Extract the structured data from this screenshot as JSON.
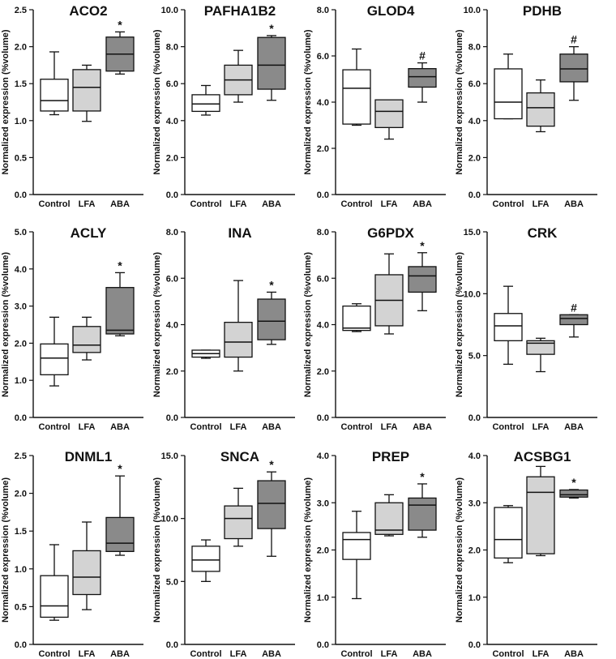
{
  "figure": {
    "ylabel": "Normalized expression (%volume)",
    "categories": [
      "Control",
      "LFA",
      "ABA"
    ],
    "colors": {
      "Control": "#ffffff",
      "LFA": "#d3d3d3",
      "ABA": "#8a8a8a",
      "stroke": "#111111"
    }
  },
  "chart_data": [
    {
      "type": "box",
      "title": "ACO2",
      "ylim": [
        0,
        2.5
      ],
      "yticks": [
        "0.0",
        "0.5",
        "1.0",
        "1.5",
        "2.0",
        "2.5"
      ],
      "categories": [
        "Control",
        "LFA",
        "ABA"
      ],
      "boxes": [
        {
          "min": 1.08,
          "q1": 1.13,
          "median": 1.27,
          "q3": 1.56,
          "max": 1.93
        },
        {
          "min": 0.99,
          "q1": 1.13,
          "median": 1.45,
          "q3": 1.69,
          "max": 1.75
        },
        {
          "min": 1.63,
          "q1": 1.67,
          "median": 1.9,
          "q3": 2.13,
          "max": 2.2
        }
      ],
      "markers": [
        "",
        "",
        "*"
      ]
    },
    {
      "type": "box",
      "title": "PAFHA1B2",
      "ylim": [
        0,
        10
      ],
      "yticks": [
        "0.0",
        "2.0",
        "4.0",
        "6.0",
        "8.0",
        "10.0"
      ],
      "categories": [
        "Control",
        "LFA",
        "ABA"
      ],
      "boxes": [
        {
          "min": 4.3,
          "q1": 4.5,
          "median": 4.9,
          "q3": 5.4,
          "max": 5.9
        },
        {
          "min": 5.0,
          "q1": 5.4,
          "median": 6.2,
          "q3": 7.0,
          "max": 7.8
        },
        {
          "min": 5.1,
          "q1": 5.7,
          "median": 7.0,
          "q3": 8.5,
          "max": 8.6
        }
      ],
      "markers": [
        "",
        "",
        "*"
      ]
    },
    {
      "type": "box",
      "title": "GLOD4",
      "ylim": [
        0,
        8
      ],
      "yticks": [
        "0.0",
        "2.0",
        "4.0",
        "6.0",
        "8.0"
      ],
      "categories": [
        "Control",
        "LFA",
        "ABA"
      ],
      "boxes": [
        {
          "min": 3.0,
          "q1": 3.05,
          "median": 4.6,
          "q3": 5.4,
          "max": 6.3
        },
        {
          "min": 2.4,
          "q1": 2.9,
          "median": 3.6,
          "q3": 4.1,
          "max": 4.1
        },
        {
          "min": 4.0,
          "q1": 4.65,
          "median": 5.1,
          "q3": 5.45,
          "max": 5.7
        }
      ],
      "markers": [
        "",
        "",
        "#"
      ]
    },
    {
      "type": "box",
      "title": "PDHB",
      "ylim": [
        0,
        10
      ],
      "yticks": [
        "0.0",
        "2.0",
        "4.0",
        "6.0",
        "8.0",
        "10.0"
      ],
      "categories": [
        "Control",
        "LFA",
        "ABA"
      ],
      "boxes": [
        {
          "min": 4.1,
          "q1": 4.1,
          "median": 5.0,
          "q3": 6.8,
          "max": 7.6
        },
        {
          "min": 3.4,
          "q1": 3.7,
          "median": 4.7,
          "q3": 5.5,
          "max": 6.2
        },
        {
          "min": 5.1,
          "q1": 6.1,
          "median": 6.8,
          "q3": 7.6,
          "max": 8.0
        }
      ],
      "markers": [
        "",
        "",
        "#"
      ]
    },
    {
      "type": "box",
      "title": "ACLY",
      "ylim": [
        0,
        5
      ],
      "yticks": [
        "0.0",
        "1.0",
        "2.0",
        "3.0",
        "4.0",
        "5.0"
      ],
      "categories": [
        "Control",
        "LFA",
        "ABA"
      ],
      "boxes": [
        {
          "min": 0.85,
          "q1": 1.15,
          "median": 1.6,
          "q3": 1.98,
          "max": 2.7
        },
        {
          "min": 1.55,
          "q1": 1.75,
          "median": 1.95,
          "q3": 2.45,
          "max": 2.7
        },
        {
          "min": 2.2,
          "q1": 2.25,
          "median": 2.35,
          "q3": 3.5,
          "max": 3.9
        }
      ],
      "markers": [
        "",
        "",
        "*"
      ]
    },
    {
      "type": "box",
      "title": "INA",
      "ylim": [
        0,
        8
      ],
      "yticks": [
        "0.0",
        "2.0",
        "4.0",
        "6.0",
        "8.0"
      ],
      "categories": [
        "Control",
        "LFA",
        "ABA"
      ],
      "boxes": [
        {
          "min": 2.55,
          "q1": 2.6,
          "median": 2.75,
          "q3": 2.9,
          "max": 2.9
        },
        {
          "min": 2.0,
          "q1": 2.6,
          "median": 3.25,
          "q3": 4.1,
          "max": 5.9
        },
        {
          "min": 3.15,
          "q1": 3.35,
          "median": 4.15,
          "q3": 5.1,
          "max": 5.4
        }
      ],
      "markers": [
        "",
        "",
        "*"
      ]
    },
    {
      "type": "box",
      "title": "G6PDX",
      "ylim": [
        0,
        8
      ],
      "yticks": [
        "0.0",
        "2.0",
        "4.0",
        "6.0",
        "8.0"
      ],
      "categories": [
        "Control",
        "LFA",
        "ABA"
      ],
      "boxes": [
        {
          "min": 3.7,
          "q1": 3.75,
          "median": 3.85,
          "q3": 4.8,
          "max": 4.9
        },
        {
          "min": 3.6,
          "q1": 3.95,
          "median": 5.05,
          "q3": 6.15,
          "max": 7.05
        },
        {
          "min": 4.6,
          "q1": 5.4,
          "median": 6.1,
          "q3": 6.5,
          "max": 7.1
        }
      ],
      "markers": [
        "",
        "",
        "*"
      ]
    },
    {
      "type": "box",
      "title": "CRK",
      "ylim": [
        0,
        15
      ],
      "yticks": [
        "0.0",
        "5.0",
        "10.0",
        "15.0"
      ],
      "categories": [
        "Control",
        "LFA",
        "ABA"
      ],
      "boxes": [
        {
          "min": 4.3,
          "q1": 6.2,
          "median": 7.4,
          "q3": 8.4,
          "max": 10.6
        },
        {
          "min": 3.7,
          "q1": 5.1,
          "median": 6.0,
          "q3": 6.2,
          "max": 6.4
        },
        {
          "min": 6.5,
          "q1": 7.5,
          "median": 8.0,
          "q3": 8.3,
          "max": 8.3
        }
      ],
      "markers": [
        "",
        "",
        "#"
      ]
    },
    {
      "type": "box",
      "title": "DNML1",
      "ylim": [
        0,
        2.5
      ],
      "yticks": [
        "0.0",
        "0.5",
        "1.0",
        "1.5",
        "2.0",
        "2.5"
      ],
      "categories": [
        "Control",
        "LFA",
        "ABA"
      ],
      "boxes": [
        {
          "min": 0.32,
          "q1": 0.36,
          "median": 0.51,
          "q3": 0.91,
          "max": 1.32
        },
        {
          "min": 0.46,
          "q1": 0.66,
          "median": 0.89,
          "q3": 1.24,
          "max": 1.62
        },
        {
          "min": 1.18,
          "q1": 1.23,
          "median": 1.34,
          "q3": 1.68,
          "max": 2.23
        }
      ],
      "markers": [
        "",
        "",
        "*"
      ]
    },
    {
      "type": "box",
      "title": "SNCA",
      "ylim": [
        0,
        15
      ],
      "yticks": [
        "0.0",
        "5.0",
        "10.0",
        "15.0"
      ],
      "categories": [
        "Control",
        "LFA",
        "ABA"
      ],
      "boxes": [
        {
          "min": 5.0,
          "q1": 5.8,
          "median": 6.7,
          "q3": 7.8,
          "max": 8.3
        },
        {
          "min": 7.8,
          "q1": 8.4,
          "median": 10.0,
          "q3": 11.0,
          "max": 12.4
        },
        {
          "min": 7.0,
          "q1": 9.2,
          "median": 11.2,
          "q3": 13.0,
          "max": 13.7
        }
      ],
      "markers": [
        "",
        "",
        "*"
      ]
    },
    {
      "type": "box",
      "title": "PREP",
      "ylim": [
        0,
        4
      ],
      "yticks": [
        "0.0",
        "1.0",
        "2.0",
        "3.0",
        "4.0"
      ],
      "categories": [
        "Control",
        "LFA",
        "ABA"
      ],
      "boxes": [
        {
          "min": 0.97,
          "q1": 1.8,
          "median": 2.22,
          "q3": 2.37,
          "max": 2.82
        },
        {
          "min": 2.3,
          "q1": 2.33,
          "median": 2.42,
          "q3": 3.0,
          "max": 3.17
        },
        {
          "min": 2.27,
          "q1": 2.42,
          "median": 2.95,
          "q3": 3.1,
          "max": 3.4
        }
      ],
      "markers": [
        "",
        "",
        "*"
      ]
    },
    {
      "type": "box",
      "title": "ACSBG1",
      "ylim": [
        0,
        4
      ],
      "yticks": [
        "0.0",
        "1.0",
        "2.0",
        "3.0",
        "4.0"
      ],
      "categories": [
        "Control",
        "LFA",
        "ABA"
      ],
      "boxes": [
        {
          "min": 1.73,
          "q1": 1.83,
          "median": 2.22,
          "q3": 2.9,
          "max": 2.94
        },
        {
          "min": 1.88,
          "q1": 1.92,
          "median": 3.22,
          "q3": 3.55,
          "max": 3.77
        },
        {
          "min": 3.1,
          "q1": 3.12,
          "median": 3.17,
          "q3": 3.27,
          "max": 3.28
        }
      ],
      "markers": [
        "",
        "",
        "*"
      ]
    }
  ]
}
